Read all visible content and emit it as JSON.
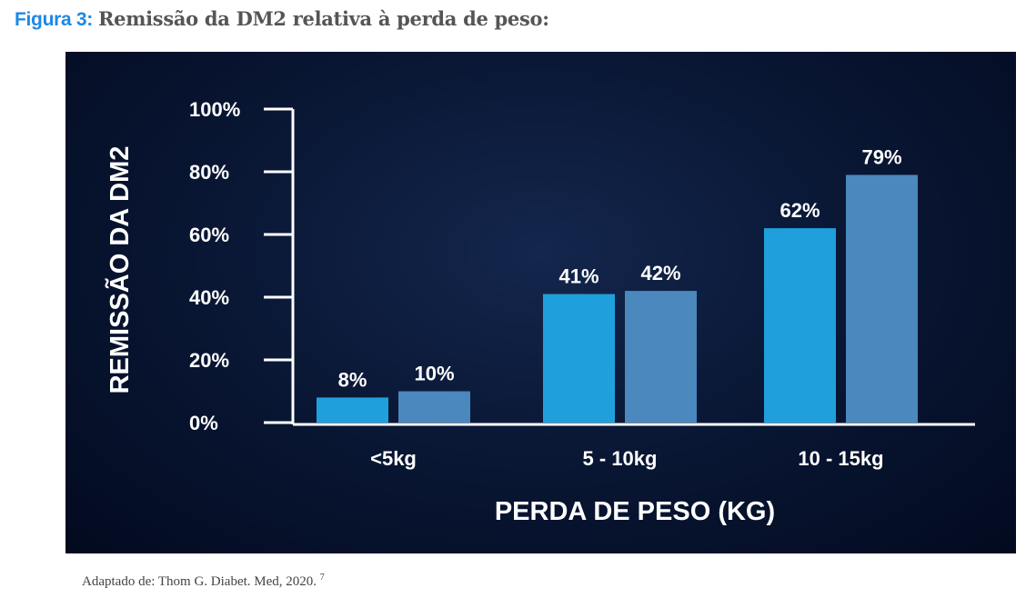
{
  "caption": {
    "figure_label": "Figura 3:",
    "title": "Remissão da DM2 relativa à perda de peso:"
  },
  "source": {
    "text": "Adaptado de: Thom G. Diabet. Med, 2020.",
    "ref": "7"
  },
  "chart_data": {
    "type": "bar",
    "title": "",
    "xlabel": "PERDA DE PESO (KG)",
    "ylabel": "REMISSÃO DA DM2",
    "categories": [
      "<5kg",
      "5 - 10kg",
      "10 - 15kg"
    ],
    "series": [
      {
        "values": [
          8,
          41,
          62
        ],
        "color": "#1fa0dc"
      },
      {
        "values": [
          10,
          42,
          79
        ],
        "color": "#4a88bd"
      }
    ],
    "data_labels": [
      [
        "8%",
        "41%",
        "62%"
      ],
      [
        "10%",
        "42%",
        "79%"
      ]
    ],
    "ylim": [
      0,
      100
    ],
    "yticks": [
      "0%",
      "20%",
      "40%",
      "60%",
      "80%",
      "100%"
    ],
    "grid": false,
    "background": "#0a1836"
  }
}
